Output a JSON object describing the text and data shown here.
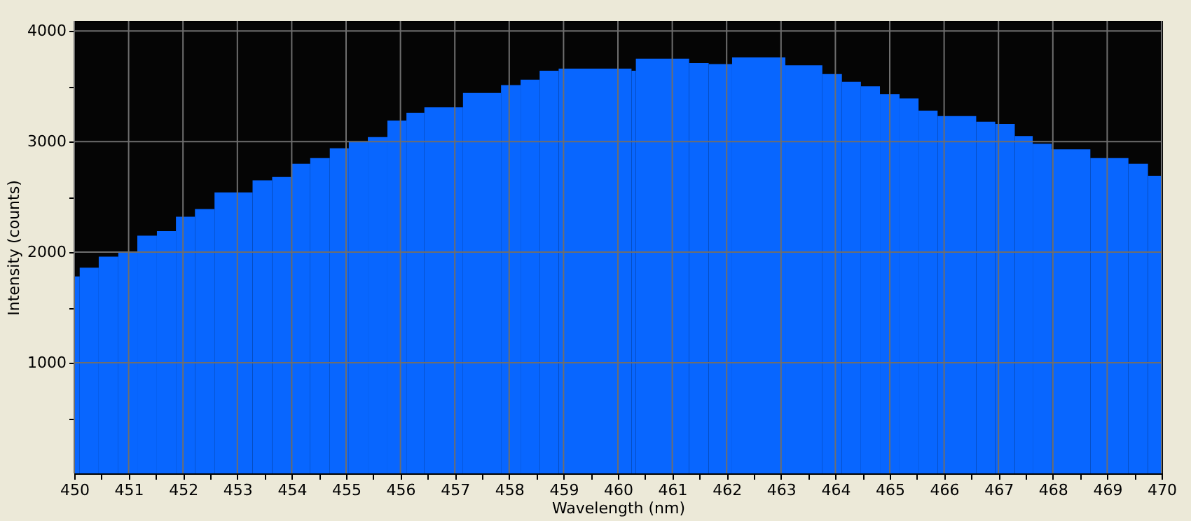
{
  "chart_data": {
    "type": "histogram",
    "xlabel": "Wavelength (nm)",
    "ylabel": "Intensity (counts)",
    "color": "#0866ff",
    "bins": [
      450.0,
      450.1,
      450.45,
      450.81,
      451.16,
      451.52,
      451.87,
      452.22,
      452.58,
      453.28,
      453.64,
      453.99,
      454.34,
      454.7,
      455.05,
      455.4,
      455.76,
      456.11,
      456.44,
      457.15,
      457.85,
      458.21,
      458.56,
      458.91,
      460.25,
      460.33,
      461.31,
      461.67,
      462.1,
      463.08,
      463.76,
      464.12,
      464.47,
      464.82,
      465.18,
      465.53,
      465.88,
      466.59,
      466.94,
      467.3,
      467.63,
      467.98,
      468.69,
      469.39,
      469.75,
      470.0
    ],
    "values": [
      1780,
      1860,
      1960,
      2000,
      2150,
      2190,
      2320,
      2390,
      2540,
      2650,
      2680,
      2800,
      2850,
      2940,
      3000,
      3040,
      3190,
      3260,
      3310,
      3440,
      3510,
      3560,
      3640,
      3660,
      3640,
      3750,
      3710,
      3700,
      3760,
      3690,
      3610,
      3540,
      3500,
      3430,
      3390,
      3280,
      3230,
      3180,
      3160,
      3050,
      2980,
      2930,
      2850,
      2800,
      2690
    ],
    "xlim": [
      450,
      470
    ],
    "ylim": [
      0,
      4090
    ],
    "xticks": [
      450,
      {
        "value": 450.5,
        "label": null
      },
      451,
      {
        "value": 451.5,
        "label": null
      },
      452,
      {
        "value": 452.5,
        "label": null
      },
      453,
      {
        "value": 453.5,
        "label": null
      },
      454,
      {
        "value": 454.5,
        "label": null
      },
      455,
      {
        "value": 455.5,
        "label": null
      },
      456,
      {
        "value": 456.5,
        "label": null
      },
      457,
      {
        "value": 457.5,
        "label": null
      },
      458,
      {
        "value": 458.5,
        "label": null
      },
      459,
      {
        "value": 459.5,
        "label": null
      },
      460,
      {
        "value": 460.5,
        "label": null
      },
      461,
      {
        "value": 461.5,
        "label": null
      },
      462,
      {
        "value": 462.5,
        "label": null
      },
      463,
      {
        "value": 463.5,
        "label": null
      },
      464,
      {
        "value": 464.5,
        "label": null
      },
      465,
      {
        "value": 465.5,
        "label": null
      },
      466,
      {
        "value": 466.5,
        "label": null
      },
      467,
      {
        "value": 467.5,
        "label": null
      },
      468,
      {
        "value": 468.5,
        "label": null
      },
      469,
      {
        "value": 469.5,
        "label": null
      },
      470
    ],
    "yticks": [
      {
        "value": 500,
        "label": null
      },
      1000,
      {
        "value": 1500,
        "label": null
      },
      2000,
      {
        "value": 2500,
        "label": null
      },
      3000,
      {
        "value": 3500,
        "label": null
      },
      4000
    ],
    "grid": true
  }
}
